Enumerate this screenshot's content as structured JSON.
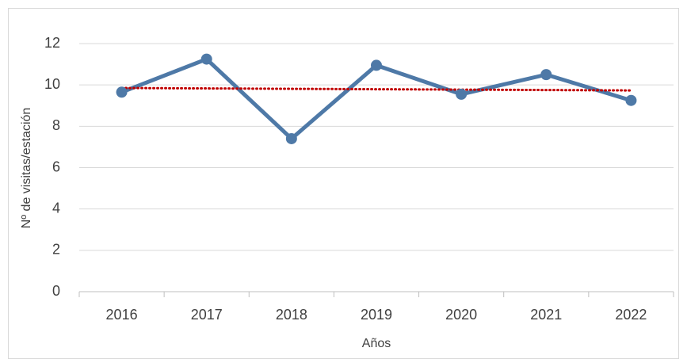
{
  "chart_data": {
    "type": "line",
    "x_label": "Años",
    "y_label": "Nº de visitas/estación",
    "categories": [
      "2016",
      "2017",
      "2018",
      "2019",
      "2020",
      "2021",
      "2022"
    ],
    "values": [
      9.65,
      11.25,
      7.4,
      10.95,
      9.55,
      10.5,
      9.25
    ],
    "color": "#4e79a7",
    "trendline": {
      "type": "linear",
      "color": "#c00000",
      "style": "dotted"
    },
    "ylim": [
      0,
      12
    ],
    "yticks": [
      0,
      2,
      4,
      6,
      8,
      10,
      12
    ],
    "grid": true
  }
}
